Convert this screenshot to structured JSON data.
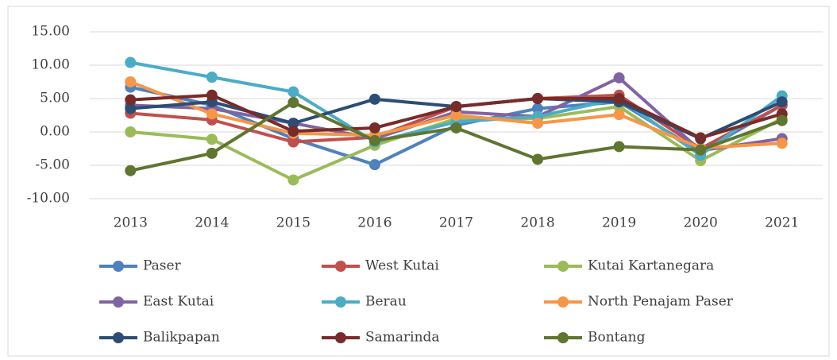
{
  "chart_data": {
    "type": "line",
    "categories": [
      "2013",
      "2014",
      "2015",
      "2016",
      "2017",
      "2018",
      "2019",
      "2020",
      "2021"
    ],
    "series": [
      {
        "name": "Paser",
        "color": "#4f81bd",
        "values": [
          6.7,
          4.0,
          -1.0,
          -4.9,
          1.0,
          3.5,
          4.5,
          -3.0,
          4.0
        ]
      },
      {
        "name": "West Kutai",
        "color": "#c0504d",
        "values": [
          2.8,
          1.8,
          -1.5,
          -0.8,
          3.8,
          5.0,
          5.5,
          -2.5,
          4.0
        ]
      },
      {
        "name": "Kutai Kartanegara",
        "color": "#9bbb59",
        "values": [
          0.0,
          -1.1,
          -7.2,
          -2.0,
          2.0,
          2.0,
          3.8,
          -4.3,
          2.0
        ]
      },
      {
        "name": "East Kutai",
        "color": "#8064a2",
        "values": [
          4.0,
          3.5,
          1.3,
          -1.0,
          3.0,
          2.3,
          8.1,
          -2.8,
          -1.0
        ]
      },
      {
        "name": "Berau",
        "color": "#4bacc6",
        "values": [
          10.4,
          8.2,
          6.0,
          -1.5,
          1.5,
          2.3,
          5.0,
          -3.5,
          5.4
        ]
      },
      {
        "name": "North Penajam Paser",
        "color": "#f79646",
        "values": [
          7.5,
          2.7,
          -0.2,
          -0.5,
          2.5,
          1.3,
          2.6,
          -2.4,
          -1.7
        ]
      },
      {
        "name": "Balikpapan",
        "color": "#2c4d75",
        "values": [
          3.5,
          4.5,
          1.3,
          4.9,
          3.8,
          5.0,
          4.5,
          -1.0,
          4.5
        ]
      },
      {
        "name": "Samarinda",
        "color": "#772c2a",
        "values": [
          4.8,
          5.5,
          0.1,
          0.6,
          3.8,
          5.0,
          5.0,
          -0.9,
          2.7
        ]
      },
      {
        "name": "Bontang",
        "color": "#5f7530",
        "values": [
          -5.8,
          -3.2,
          4.4,
          -1.3,
          0.6,
          -4.1,
          -2.2,
          -2.7,
          1.7
        ]
      }
    ],
    "ylim": [
      -10,
      15
    ],
    "yticks": [
      {
        "value": -10,
        "label": "-10.00"
      },
      {
        "value": -5,
        "label": "-5.00"
      },
      {
        "value": 0,
        "label": "0.00"
      },
      {
        "value": 5,
        "label": "5.00"
      },
      {
        "value": 10,
        "label": "10.00"
      },
      {
        "value": 15,
        "label": "15.00"
      }
    ],
    "grid": true,
    "legend": "bottom"
  }
}
